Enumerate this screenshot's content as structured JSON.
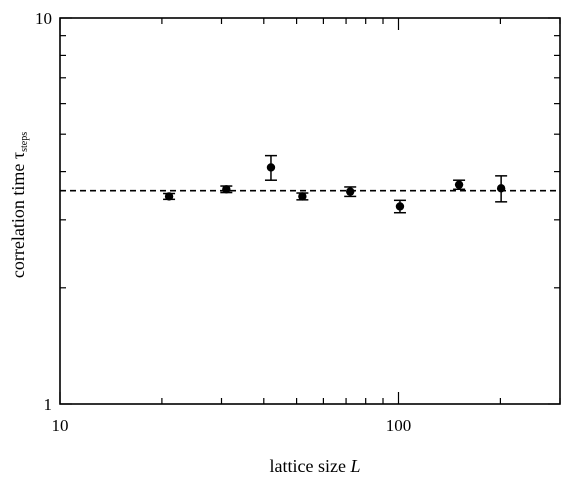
{
  "chart_data": {
    "type": "scatter",
    "xscale": "log",
    "yscale": "log",
    "xlim": [
      10,
      300
    ],
    "ylim": [
      1,
      10
    ],
    "x_ticks": [
      {
        "value": 10,
        "label": "10"
      },
      {
        "value": 100,
        "label": "100"
      }
    ],
    "y_ticks": [
      {
        "value": 1,
        "label": "1"
      },
      {
        "value": 10,
        "label": "10"
      }
    ],
    "xlabel_text": "lattice size ",
    "xlabel_italic": "L",
    "ylabel_text": "correlation time τ",
    "ylabel_sub": "steps",
    "grid": false,
    "legend": "none",
    "points": [
      {
        "x": 21,
        "y": 3.45,
        "err_low": 0.06,
        "err_high": 0.06
      },
      {
        "x": 31,
        "y": 3.6,
        "err_low": 0.07,
        "err_high": 0.07
      },
      {
        "x": 42,
        "y": 4.1,
        "err_low": 0.3,
        "err_high": 0.3
      },
      {
        "x": 52,
        "y": 3.45,
        "err_low": 0.07,
        "err_high": 0.07
      },
      {
        "x": 72,
        "y": 3.55,
        "err_low": 0.1,
        "err_high": 0.1
      },
      {
        "x": 101,
        "y": 3.25,
        "err_low": 0.12,
        "err_high": 0.12
      },
      {
        "x": 151,
        "y": 3.7,
        "err_low": 0.1,
        "err_high": 0.1
      },
      {
        "x": 201,
        "y": 3.62,
        "err_low": 0.28,
        "err_high": 0.28
      }
    ],
    "fit_line": {
      "y": 3.57,
      "style": "dashed"
    },
    "colors": {
      "marker": "#000000",
      "line": "#000000"
    }
  }
}
